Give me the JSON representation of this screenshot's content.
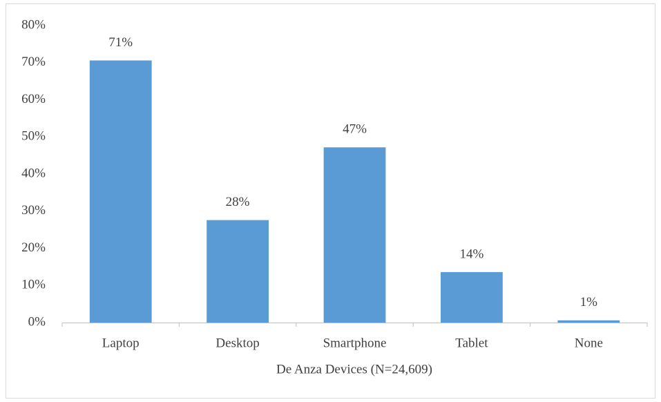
{
  "chart_data": {
    "type": "bar",
    "x_label": "De Anza Devices (N=24,609)",
    "categories": [
      "Laptop",
      "Desktop",
      "Smartphone",
      "Tablet",
      "None"
    ],
    "values": [
      70.6,
      27.6,
      47.2,
      13.6,
      0.6
    ],
    "value_labels": [
      "71%",
      "28%",
      "47%",
      "14%",
      "1%"
    ],
    "color": "#5b9bd5",
    "ylim": [
      0,
      80
    ],
    "yticks": [
      {
        "value": 0,
        "label": "0%"
      },
      {
        "value": 10,
        "label": "10%"
      },
      {
        "value": 20,
        "label": "20%"
      },
      {
        "value": 30,
        "label": "30%"
      },
      {
        "value": 40,
        "label": "40%"
      },
      {
        "value": 50,
        "label": "50%"
      },
      {
        "value": 60,
        "label": "60%"
      },
      {
        "value": 70,
        "label": "70%"
      },
      {
        "value": 80,
        "label": "80%"
      }
    ],
    "grid": false
  }
}
